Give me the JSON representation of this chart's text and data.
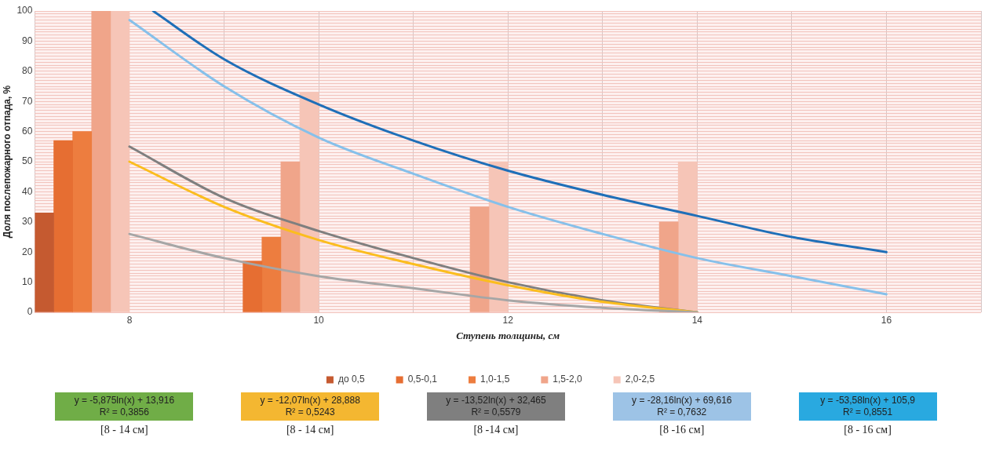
{
  "chart_data": {
    "type": "bar",
    "xlabel": "Ступень толщины, см",
    "ylabel": "Доля послепожарного отпада, %",
    "x": [
      8,
      10,
      12,
      14
    ],
    "xlim": [
      7,
      17
    ],
    "xticks": [
      {
        "value": 7,
        "label": null
      },
      8,
      {
        "value": 9,
        "label": null
      },
      10,
      {
        "value": 11,
        "label": null
      },
      12,
      {
        "value": 13,
        "label": null
      },
      14,
      {
        "value": 15,
        "label": null
      },
      16,
      {
        "value": 17,
        "label": null
      }
    ],
    "ylim": [
      0,
      100
    ],
    "yticks": [
      0,
      {
        "value": 1,
        "label": null
      },
      {
        "value": 2,
        "label": null
      },
      {
        "value": 3,
        "label": null
      },
      {
        "value": 4,
        "label": null
      },
      {
        "value": 5,
        "label": null
      },
      {
        "value": 6,
        "label": null
      },
      {
        "value": 7,
        "label": null
      },
      {
        "value": 8,
        "label": null
      },
      {
        "value": 9,
        "label": null
      },
      10,
      {
        "value": 11,
        "label": null
      },
      {
        "value": 12,
        "label": null
      },
      {
        "value": 13,
        "label": null
      },
      {
        "value": 14,
        "label": null
      },
      {
        "value": 15,
        "label": null
      },
      {
        "value": 16,
        "label": null
      },
      {
        "value": 17,
        "label": null
      },
      {
        "value": 18,
        "label": null
      },
      {
        "value": 19,
        "label": null
      },
      20,
      {
        "value": 21,
        "label": null
      },
      {
        "value": 22,
        "label": null
      },
      {
        "value": 23,
        "label": null
      },
      {
        "value": 24,
        "label": null
      },
      {
        "value": 25,
        "label": null
      },
      {
        "value": 26,
        "label": null
      },
      {
        "value": 27,
        "label": null
      },
      {
        "value": 28,
        "label": null
      },
      {
        "value": 29,
        "label": null
      },
      30,
      {
        "value": 31,
        "label": null
      },
      {
        "value": 32,
        "label": null
      },
      {
        "value": 33,
        "label": null
      },
      {
        "value": 34,
        "label": null
      },
      {
        "value": 35,
        "label": null
      },
      {
        "value": 36,
        "label": null
      },
      {
        "value": 37,
        "label": null
      },
      {
        "value": 38,
        "label": null
      },
      {
        "value": 39,
        "label": null
      },
      40,
      {
        "value": 41,
        "label": null
      },
      {
        "value": 42,
        "label": null
      },
      {
        "value": 43,
        "label": null
      },
      {
        "value": 44,
        "label": null
      },
      {
        "value": 45,
        "label": null
      },
      {
        "value": 46,
        "label": null
      },
      {
        "value": 47,
        "label": null
      },
      {
        "value": 48,
        "label": null
      },
      {
        "value": 49,
        "label": null
      },
      50,
      {
        "value": 51,
        "label": null
      },
      {
        "value": 52,
        "label": null
      },
      {
        "value": 53,
        "label": null
      },
      {
        "value": 54,
        "label": null
      },
      {
        "value": 55,
        "label": null
      },
      {
        "value": 56,
        "label": null
      },
      {
        "value": 57,
        "label": null
      },
      {
        "value": 58,
        "label": null
      },
      {
        "value": 59,
        "label": null
      },
      60,
      {
        "value": 61,
        "label": null
      },
      {
        "value": 62,
        "label": null
      },
      {
        "value": 63,
        "label": null
      },
      {
        "value": 64,
        "label": null
      },
      {
        "value": 65,
        "label": null
      },
      {
        "value": 66,
        "label": null
      },
      {
        "value": 67,
        "label": null
      },
      {
        "value": 68,
        "label": null
      },
      {
        "value": 69,
        "label": null
      },
      70,
      {
        "value": 71,
        "label": null
      },
      {
        "value": 72,
        "label": null
      },
      {
        "value": 73,
        "label": null
      },
      {
        "value": 74,
        "label": null
      },
      {
        "value": 75,
        "label": null
      },
      {
        "value": 76,
        "label": null
      },
      {
        "value": 77,
        "label": null
      },
      {
        "value": 78,
        "label": null
      },
      {
        "value": 79,
        "label": null
      },
      80,
      {
        "value": 81,
        "label": null
      },
      {
        "value": 82,
        "label": null
      },
      {
        "value": 83,
        "label": null
      },
      {
        "value": 84,
        "label": null
      },
      {
        "value": 85,
        "label": null
      },
      {
        "value": 86,
        "label": null
      },
      {
        "value": 87,
        "label": null
      },
      {
        "value": 88,
        "label": null
      },
      {
        "value": 89,
        "label": null
      },
      90,
      {
        "value": 91,
        "label": null
      },
      {
        "value": 92,
        "label": null
      },
      {
        "value": 93,
        "label": null
      },
      {
        "value": 94,
        "label": null
      },
      {
        "value": 95,
        "label": null
      },
      {
        "value": 96,
        "label": null
      },
      {
        "value": 97,
        "label": null
      },
      {
        "value": 98,
        "label": null
      },
      {
        "value": 99,
        "label": null
      },
      100
    ],
    "grid": true,
    "legend": "bottom",
    "series": [
      {
        "name": "до 0,5",
        "color": "#c55a30",
        "values": [
          33,
          null,
          null,
          null
        ]
      },
      {
        "name": "0,5-0,1",
        "color": "#e66e32",
        "values": [
          57,
          17,
          null,
          null
        ]
      },
      {
        "name": "1,0-1,5",
        "color": "#ed7d3f",
        "values": [
          60,
          25,
          null,
          null
        ]
      },
      {
        "name": "1,5-2,0",
        "color": "#f0a58a",
        "values": [
          100,
          50,
          35,
          30
        ]
      },
      {
        "name": "2,0-2,5",
        "color": "#f6c5b7",
        "values": [
          100,
          73,
          50,
          50
        ]
      },
      {
        "type": "line",
        "color": "#a6a6a6",
        "x": [
          8,
          9,
          10,
          11,
          12,
          13,
          14
        ],
        "values": [
          26,
          18,
          12,
          8,
          4,
          1.5,
          0
        ]
      },
      {
        "type": "line",
        "color": "#fbbd1e",
        "x": [
          8,
          9,
          10,
          11,
          12,
          13,
          14
        ],
        "values": [
          50,
          35,
          24,
          16,
          9,
          3.5,
          0
        ]
      },
      {
        "type": "line",
        "color": "#7f7f7f",
        "x": [
          8,
          9,
          10,
          11,
          12,
          13,
          14
        ],
        "values": [
          55,
          38,
          27,
          18,
          10,
          4,
          0
        ]
      },
      {
        "type": "line",
        "color": "#86c0ea",
        "x": [
          8,
          9,
          10,
          11,
          12,
          13,
          14,
          15,
          16
        ],
        "values": [
          97,
          75,
          58,
          46,
          35,
          26,
          18,
          12,
          6
        ]
      },
      {
        "type": "line",
        "color": "#1f6fb8",
        "x": [
          8.25,
          9,
          10,
          11,
          12,
          13,
          14,
          15,
          16
        ],
        "values": [
          100,
          84,
          69,
          57,
          47,
          39,
          32,
          25,
          20
        ]
      }
    ],
    "annotations": [
      "y = -5,875ln(x) + 13,916\nR² = 0,3856",
      "[8 - 14 см]",
      "y = -12,07ln(x) + 28,888\nR² = 0,5243",
      "[8 - 14 см]",
      "y = -13,52ln(x) + 32,465\nR² = 0,5579",
      "[8 -14 см]",
      "y = -28,16ln(x) + 69,616\nR² = 0,7632",
      "[8 -16 см]",
      "y = -53,58ln(x) + 105,9\nR² = 0,8551",
      "[8 - 16 см]"
    ]
  }
}
